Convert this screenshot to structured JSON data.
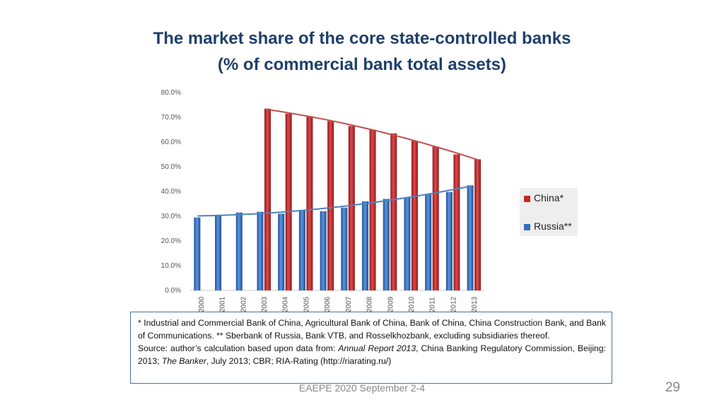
{
  "title": {
    "line1": "The market share of the core state-controlled banks",
    "line2": "(% of commercial bank total assets)"
  },
  "chart_data": {
    "type": "bar",
    "categories": [
      "2000",
      "2001",
      "2002",
      "2003",
      "2004",
      "2005",
      "2006",
      "2007",
      "2008",
      "2009",
      "2010",
      "2011",
      "2012",
      "2013"
    ],
    "series": [
      {
        "name": "China*",
        "color": "#c0292b",
        "values": [
          null,
          null,
          null,
          73.5,
          71.5,
          70.2,
          68.5,
          66.5,
          65.0,
          63.5,
          60.5,
          58.2,
          55.0,
          53.0
        ]
      },
      {
        "name": "Russia**",
        "color": "#2f6fc1",
        "values": [
          29.5,
          30.5,
          31.5,
          31.8,
          31.0,
          32.5,
          32.0,
          33.5,
          36.0,
          37.0,
          37.5,
          39.0,
          39.8,
          42.5
        ]
      }
    ],
    "trendlines": true,
    "ylim": [
      0,
      80
    ],
    "yticks": [
      "0.0%",
      "10.0%",
      "20.0%",
      "30.0%",
      "40.0%",
      "50.0%",
      "60.0%",
      "70.0%",
      "80.0%"
    ],
    "legend_position": "right",
    "grid": false
  },
  "note": {
    "definitions": "* Industrial and Commercial Bank of China, Agricultural Bank of China, Bank of China, China Construction Bank, and Bank of Communications. ** Sberbank of Russia, Bank VTB, and Rosselkhozbank, excluding subsidiaries thereof.",
    "source_prefix": "Source: author’s calculation based upon data from: ",
    "source_annual_report": "Annual Report 2013",
    "source_mid": ", China Banking Regulatory Commission, Beijing: 2013; ",
    "source_banker": "The Banker",
    "source_suffix": ", July 2013; CBR; RIA-Rating (http://riarating.ru/)"
  },
  "footer": "EAEPE 2020 September 2-4",
  "page_number": "29"
}
